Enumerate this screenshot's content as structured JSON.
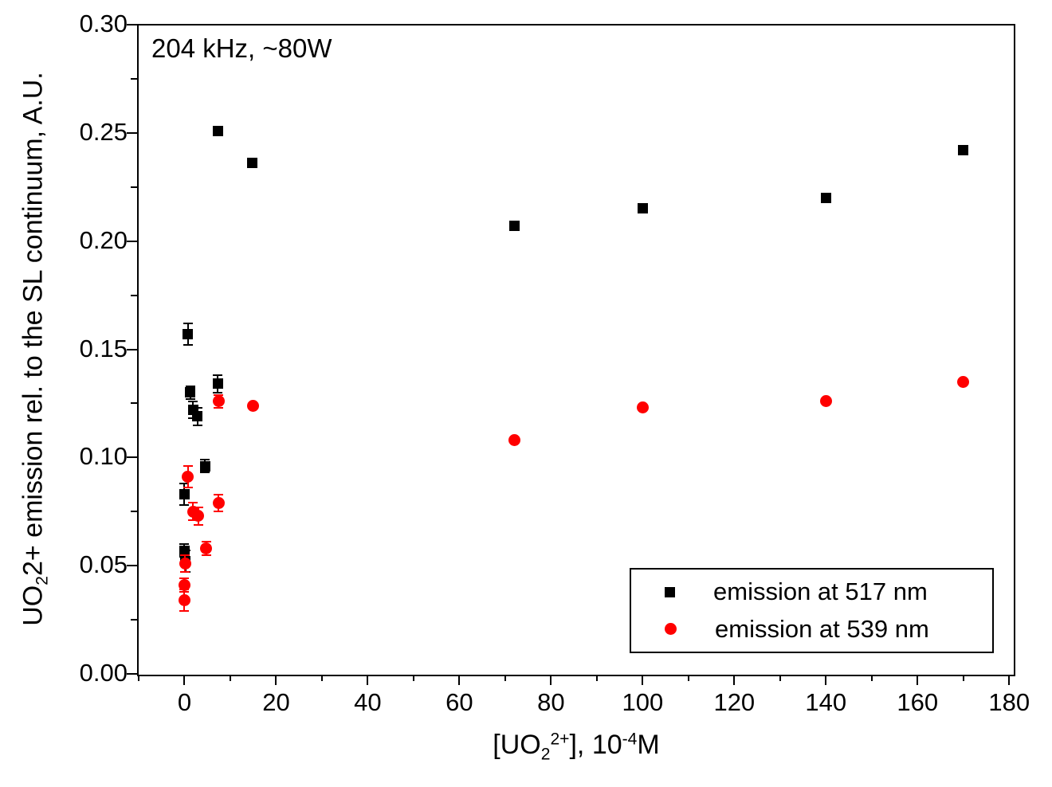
{
  "figure": {
    "background_color": "#FFFFFF",
    "frame_color": "#000000"
  },
  "chart_data": {
    "type": "scatter",
    "annotation": "204 kHz, ~80W",
    "xlabel_text": "[UO2 2+], 10-4 M",
    "ylabel_text": "UO2 2+ emission rel. to the SL continuum, A.U.",
    "xlabel_parts": [
      {
        "t": "[UO"
      },
      {
        "t": "2",
        "s": "sub"
      },
      {
        "t": "2+",
        "s": "sup"
      },
      {
        "t": "], 10"
      },
      {
        "t": "-4",
        "s": "sup"
      },
      {
        "t": "M"
      }
    ],
    "ylabel_parts": [
      {
        "t": "UO"
      },
      {
        "t": "2",
        "s": "sub"
      },
      {
        "t": "2+ emission rel. to the SL continuum, A.U."
      }
    ],
    "xlim": [
      -10,
      181
    ],
    "ylim": [
      0,
      0.3
    ],
    "grid": false,
    "legend_position": "lower right",
    "x_axis": {
      "major_ticks": [
        0,
        20,
        40,
        60,
        80,
        100,
        120,
        140,
        160,
        180
      ],
      "major_labels": [
        "0",
        "20",
        "40",
        "60",
        "80",
        "100",
        "120",
        "140",
        "160",
        "180"
      ],
      "minor_ticks": [
        -10,
        10,
        30,
        50,
        70,
        90,
        110,
        130,
        150,
        170
      ]
    },
    "y_axis": {
      "major_ticks": [
        0,
        0.05,
        0.1,
        0.15,
        0.2,
        0.25,
        0.3
      ],
      "major_labels": [
        "0.00",
        "0.05",
        "0.10",
        "0.15",
        "0.20",
        "0.25",
        "0.30"
      ],
      "minor_ticks": [
        0.025,
        0.075,
        0.125,
        0.175,
        0.225,
        0.275
      ]
    },
    "series": [
      {
        "name": "emission at 517 nm",
        "marker": "square",
        "color": "#000000",
        "points": [
          {
            "x": 0,
            "y": 0.083,
            "ey": 0.005
          },
          {
            "x": 0,
            "y": 0.057,
            "ey": 0.003
          },
          {
            "x": 0.2,
            "y": 0.052,
            "ey": 0.005
          },
          {
            "x": 0.7,
            "y": 0.157,
            "ey": 0.005
          },
          {
            "x": 1.3,
            "y": 0.13,
            "ey": 0.003
          },
          {
            "x": 1.9,
            "y": 0.122,
            "ey": 0.004
          },
          {
            "x": 2.8,
            "y": 0.119,
            "ey": 0.004
          },
          {
            "x": 4.5,
            "y": 0.096,
            "ey": 0.003
          },
          {
            "x": 7.3,
            "y": 0.134,
            "ey": 0.004
          },
          {
            "x": 7.3,
            "y": 0.251,
            "ey": 0
          },
          {
            "x": 14.8,
            "y": 0.236,
            "ey": 0
          },
          {
            "x": 72,
            "y": 0.207,
            "ey": 0
          },
          {
            "x": 100,
            "y": 0.215,
            "ey": 0
          },
          {
            "x": 140,
            "y": 0.22,
            "ey": 0
          },
          {
            "x": 170,
            "y": 0.242,
            "ey": 0
          }
        ]
      },
      {
        "name": "emission at 539 nm",
        "marker": "circle",
        "color": "#FF0000",
        "points": [
          {
            "x": 0.1,
            "y": 0.051,
            "ey": 0.004
          },
          {
            "x": 0,
            "y": 0.041,
            "ey": 0.003
          },
          {
            "x": 0,
            "y": 0.034,
            "ey": 0.005
          },
          {
            "x": 0.7,
            "y": 0.091,
            "ey": 0.005
          },
          {
            "x": 1.9,
            "y": 0.075,
            "ey": 0.004
          },
          {
            "x": 3.0,
            "y": 0.073,
            "ey": 0.004
          },
          {
            "x": 4.7,
            "y": 0.058,
            "ey": 0.003
          },
          {
            "x": 7.4,
            "y": 0.079,
            "ey": 0.004
          },
          {
            "x": 7.4,
            "y": 0.126,
            "ey": 0.003
          },
          {
            "x": 14.9,
            "y": 0.124,
            "ey": 0
          },
          {
            "x": 72,
            "y": 0.108,
            "ey": 0
          },
          {
            "x": 100,
            "y": 0.123,
            "ey": 0
          },
          {
            "x": 140,
            "y": 0.126,
            "ey": 0
          },
          {
            "x": 170,
            "y": 0.135,
            "ey": 0
          }
        ]
      }
    ]
  },
  "legend": {
    "entries": [
      {
        "label": "emission at 517 nm",
        "marker": "square",
        "color": "#000000"
      },
      {
        "label": "emission at 539 nm",
        "marker": "circle",
        "color": "#FF0000"
      }
    ]
  }
}
